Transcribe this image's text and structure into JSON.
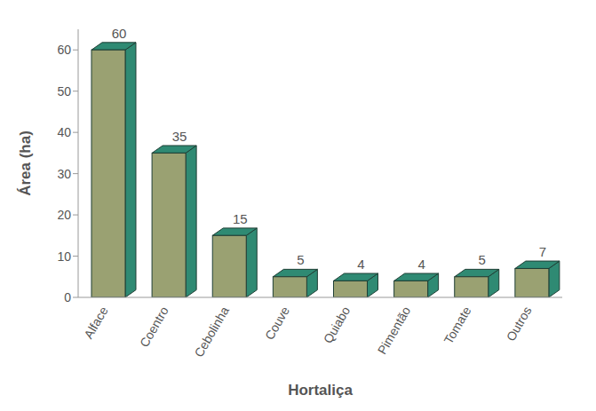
{
  "chart_data": {
    "type": "bar",
    "categories": [
      "Alface",
      "Coentro",
      "Cebolinha",
      "Couve",
      "Quiabo",
      "Pimentão",
      "Tomate",
      "Outros"
    ],
    "values": [
      60,
      35,
      15,
      5,
      4,
      4,
      5,
      7
    ],
    "color": "#9aa172",
    "x_label": "Hortaliça",
    "y_label": "Área (ha)",
    "ylim": [
      0,
      65
    ],
    "yticks": [
      0,
      10,
      20,
      30,
      40,
      50,
      60
    ],
    "grid": false,
    "data_labels": true
  }
}
